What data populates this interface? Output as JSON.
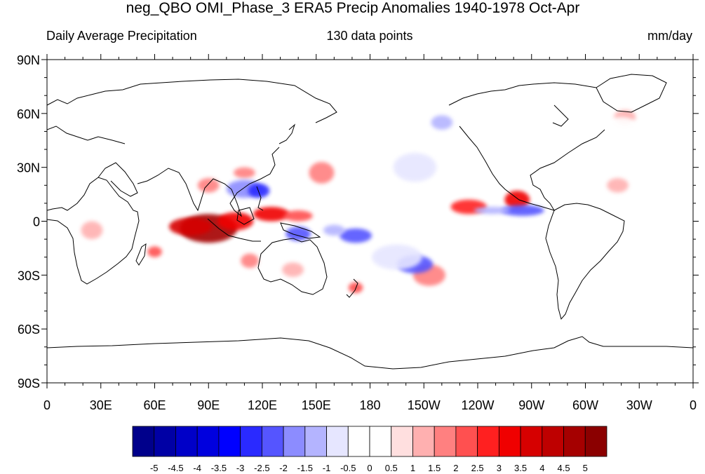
{
  "title": "neg_QBO OMI_Phase_3 ERA5 Precip Anomalies 1940-1978 Oct-Apr",
  "left_label": "Daily Average Precipitation",
  "center_label": "130 data points",
  "right_label": "mm/day",
  "map_data": {
    "projection": "cylindrical-equidistant",
    "lon_range": [
      0,
      360
    ],
    "lat_range": [
      -90,
      90
    ],
    "lon_ticks": [
      {
        "lon": 0,
        "label": "0"
      },
      {
        "lon": 30,
        "label": "30E"
      },
      {
        "lon": 60,
        "label": "60E"
      },
      {
        "lon": 90,
        "label": "90E"
      },
      {
        "lon": 120,
        "label": "120E"
      },
      {
        "lon": 150,
        "label": "150E"
      },
      {
        "lon": 180,
        "label": "180"
      },
      {
        "lon": 210,
        "label": "150W"
      },
      {
        "lon": 240,
        "label": "120W"
      },
      {
        "lon": 270,
        "label": "90W"
      },
      {
        "lon": 300,
        "label": "60W"
      },
      {
        "lon": 330,
        "label": "30W"
      },
      {
        "lon": 360,
        "label": "0"
      }
    ],
    "lat_ticks": [
      {
        "lat": 90,
        "label": "90N"
      },
      {
        "lat": 60,
        "label": "60N"
      },
      {
        "lat": 30,
        "label": "30N"
      },
      {
        "lat": 0,
        "label": "0"
      },
      {
        "lat": -30,
        "label": "30S"
      },
      {
        "lat": -60,
        "label": "60S"
      },
      {
        "lat": -90,
        "label": "90S"
      }
    ],
    "anomaly_regions": [
      {
        "lon": 90,
        "lat": -4,
        "rlon": 16,
        "rlat": 8,
        "value": 4.5
      },
      {
        "lon": 80,
        "lat": -3,
        "rlon": 12,
        "rlat": 5,
        "value": 3.5
      },
      {
        "lon": 105,
        "lat": 0,
        "rlon": 10,
        "rlat": 5,
        "value": 3
      },
      {
        "lon": 125,
        "lat": 4,
        "rlon": 10,
        "rlat": 4,
        "value": 3
      },
      {
        "lon": 140,
        "lat": 3,
        "rlon": 8,
        "rlat": 3,
        "value": 2
      },
      {
        "lon": 90,
        "lat": 20,
        "rlon": 6,
        "rlat": 4,
        "value": 1.5
      },
      {
        "lon": 110,
        "lat": 27,
        "rlon": 6,
        "rlat": 3,
        "value": 1.5
      },
      {
        "lon": 153,
        "lat": 27,
        "rlon": 7,
        "rlat": 6,
        "value": 1.5
      },
      {
        "lon": 113,
        "lat": -22,
        "rlon": 5,
        "rlat": 4,
        "value": 1.5
      },
      {
        "lon": 60,
        "lat": -17,
        "rlon": 4,
        "rlat": 3,
        "value": 2
      },
      {
        "lon": 137,
        "lat": -27,
        "rlon": 6,
        "rlat": 4,
        "value": 1
      },
      {
        "lon": 172,
        "lat": -37,
        "rlon": 4,
        "rlat": 3,
        "value": 2
      },
      {
        "lon": 213,
        "lat": -30,
        "rlon": 9,
        "rlat": 6,
        "value": 1.5
      },
      {
        "lon": 235,
        "lat": 8,
        "rlon": 10,
        "rlat": 4,
        "value": 2.5
      },
      {
        "lon": 262,
        "lat": 12,
        "rlon": 7,
        "rlat": 5,
        "value": 3
      },
      {
        "lon": 25,
        "lat": -5,
        "rlon": 6,
        "rlat": 5,
        "value": 1
      },
      {
        "lon": 318,
        "lat": 20,
        "rlon": 6,
        "rlat": 4,
        "value": 1
      },
      {
        "lon": 322,
        "lat": 58,
        "rlon": 6,
        "rlat": 4,
        "value": 1
      },
      {
        "lon": 110,
        "lat": 18,
        "rlon": 10,
        "rlat": 5,
        "value": -2
      },
      {
        "lon": 118,
        "lat": 17,
        "rlon": 6,
        "rlat": 4,
        "value": -3
      },
      {
        "lon": 140,
        "lat": -7,
        "rlon": 7,
        "rlat": 4,
        "value": -2.5
      },
      {
        "lon": 172,
        "lat": -8,
        "rlon": 9,
        "rlat": 4,
        "value": -2.5
      },
      {
        "lon": 160,
        "lat": -5,
        "rlon": 6,
        "rlat": 3,
        "value": -1.5
      },
      {
        "lon": 205,
        "lat": -24,
        "rlon": 10,
        "rlat": 5,
        "value": -2.5
      },
      {
        "lon": 195,
        "lat": -20,
        "rlon": 14,
        "rlat": 7,
        "value": -1
      },
      {
        "lon": 205,
        "lat": 30,
        "rlon": 12,
        "rlat": 8,
        "value": -1
      },
      {
        "lon": 265,
        "lat": 6,
        "rlon": 12,
        "rlat": 3,
        "value": -2.5
      },
      {
        "lon": 248,
        "lat": 6,
        "rlon": 10,
        "rlat": 2,
        "value": -1.5
      },
      {
        "lon": 220,
        "lat": 55,
        "rlon": 6,
        "rlat": 4,
        "value": -1.5
      },
      {
        "lon": 320,
        "lat": 52,
        "rlon": 10,
        "rlat": 6,
        "value": -0.5
      }
    ]
  },
  "colorbar": {
    "colors": [
      "#00008b",
      "#0000a5",
      "#0000c8",
      "#0000de",
      "#0000ff",
      "#2a2aff",
      "#5555ff",
      "#8c8cff",
      "#b4b4ff",
      "#e6e6ff",
      "#ffffff",
      "#ffffff",
      "#ffdfdf",
      "#ffb0b0",
      "#ff8080",
      "#ff5050",
      "#ff2020",
      "#f00000",
      "#d60000",
      "#be0000",
      "#a50000",
      "#8b0000"
    ],
    "labels": [
      "-5",
      "-4.5",
      "-4",
      "-3.5",
      "-3",
      "-2.5",
      "-2",
      "-1.5",
      "-1",
      "-0.5",
      "0",
      "0.5",
      "1",
      "1.5",
      "2",
      "2.5",
      "3",
      "3.5",
      "4",
      "4.5",
      "5"
    ]
  }
}
